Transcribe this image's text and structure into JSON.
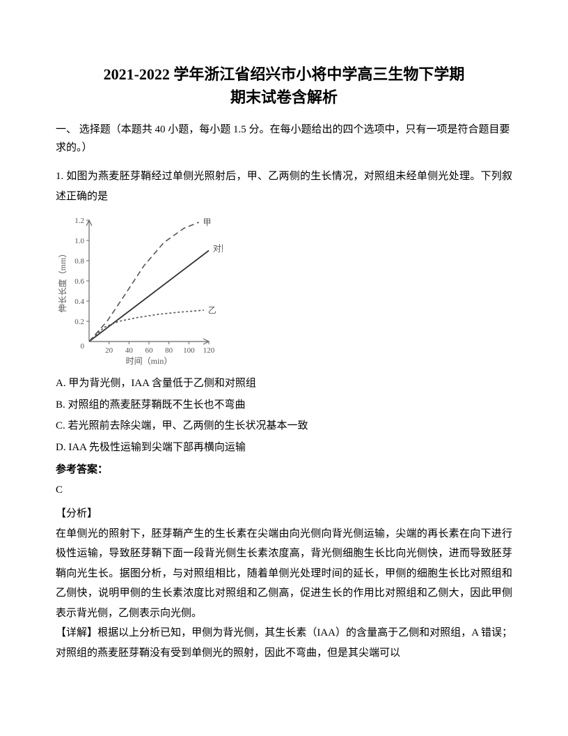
{
  "title_line1": "2021-2022 学年浙江省绍兴市小将中学高三生物下学期",
  "title_line2": "期末试卷含解析",
  "section_heading": "一、 选择题（本题共 40 小题，每小题 1.5 分。在每小题给出的四个选项中，只有一项是符合题目要求的。）",
  "q1": {
    "stem": "1. 如图为燕麦胚芽鞘经过单侧光照射后，甲、乙两侧的生长情况，对照组未经单侧光处理。下列叙述正确的是",
    "choices": {
      "A": "A. 甲为背光侧，IAA 含量低于乙侧和对照组",
      "B": "B. 对照组的燕麦胚芽鞘既不生长也不弯曲",
      "C": "C. 若光照前去除尖端，甲、乙两侧的生长状况基本一致",
      "D": "D. IAA 先极性运输到尖端下部再横向运输"
    },
    "answer_label": "参考答案：",
    "answer": "C",
    "analysis_label": "【分析】",
    "analysis_text": "在单侧光的照射下，胚芽鞘产生的生长素在尖端由向光侧向背光侧运输，尖端的再长素在向下进行极性运输，导致胚芽鞘下面一段背光侧生长素浓度高，背光侧细胞生长比向光侧快，进而导致胚芽鞘向光生长。据图分析，与对照组相比，随着单侧光处理时间的延长，甲侧的细胞生长比对照组和乙侧快，说明甲侧的生长素浓度比对照组和乙侧高，促进生长的作用比对照组和乙侧大，因此甲侧表示背光侧，乙侧表示向光侧。",
    "detail_label": "【详解】",
    "detail_text": "根据以上分析已知，甲侧为背光侧，其生长素（IAA）的含量高于乙侧和对照组，A 错误；对照组的燕麦胚芽鞘没有受到单侧光的照射，因此不弯曲，但是其尖端可以"
  },
  "chart": {
    "type": "line",
    "x_label": "时间（min）",
    "y_label": "伸长长度（mm）",
    "label_fontsize": 11,
    "label_color": "#555555",
    "axis_color": "#666666",
    "background_color": "#ffffff",
    "xlim": [
      0,
      120
    ],
    "ylim": [
      0,
      1.2
    ],
    "x_ticks": [
      20,
      40,
      60,
      80,
      100,
      120
    ],
    "y_ticks": [
      0.2,
      0.4,
      0.6,
      0.8,
      1.0,
      1.2
    ],
    "series": [
      {
        "name": "甲",
        "label": "甲",
        "dash": "8,5",
        "color": "#555555",
        "width": 1.6,
        "points": [
          [
            0,
            0
          ],
          [
            18,
            0.2
          ],
          [
            35,
            0.45
          ],
          [
            55,
            0.75
          ],
          [
            75,
            0.98
          ],
          [
            95,
            1.12
          ],
          [
            110,
            1.18
          ]
        ]
      },
      {
        "name": "对照",
        "label": "对照",
        "dash": "none",
        "color": "#333333",
        "width": 1.8,
        "points": [
          [
            0,
            0
          ],
          [
            20,
            0.15
          ],
          [
            40,
            0.3
          ],
          [
            60,
            0.45
          ],
          [
            80,
            0.6
          ],
          [
            100,
            0.75
          ],
          [
            120,
            0.9
          ]
        ]
      },
      {
        "name": "乙",
        "label": "乙",
        "dash": "3,3",
        "color": "#555555",
        "width": 1.6,
        "points": [
          [
            0,
            0
          ],
          [
            15,
            0.14
          ],
          [
            30,
            0.2
          ],
          [
            50,
            0.24
          ],
          [
            70,
            0.27
          ],
          [
            90,
            0.29
          ],
          [
            115,
            0.31
          ]
        ]
      }
    ],
    "series_label_positions": {
      "甲": [
        112,
        1.18
      ],
      "对照": [
        122,
        0.92
      ],
      "乙": [
        117,
        0.31
      ]
    }
  }
}
